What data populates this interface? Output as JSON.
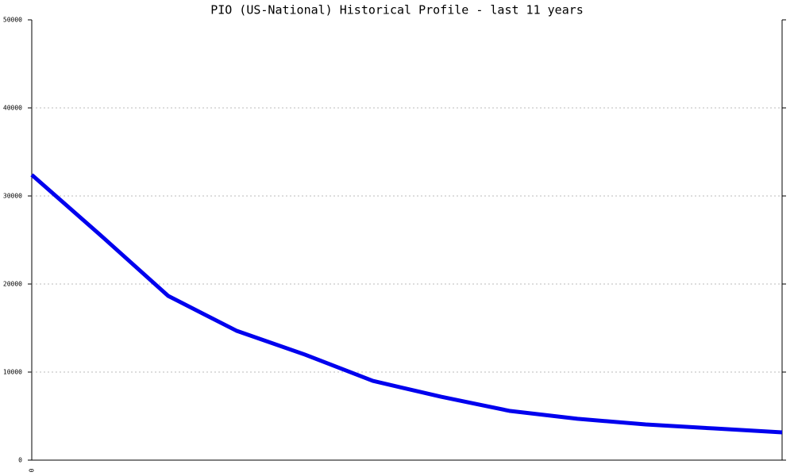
{
  "chart_data": {
    "type": "line",
    "title": "PIO (US-National) Historical Profile - last 11 years",
    "categories": [
      "0",
      null,
      null,
      null,
      null,
      null,
      null,
      null,
      null,
      null,
      null,
      null
    ],
    "series": [
      {
        "color": "#0000ee",
        "values": [
          32400,
          25600,
          18650,
          14700,
          12000,
          9000,
          7200,
          5600,
          4700,
          4050,
          3600,
          3150
        ]
      }
    ],
    "ylim": [
      0,
      50000
    ],
    "yticks": [
      0,
      10000,
      20000,
      30000,
      40000,
      50000
    ],
    "grid": true
  }
}
